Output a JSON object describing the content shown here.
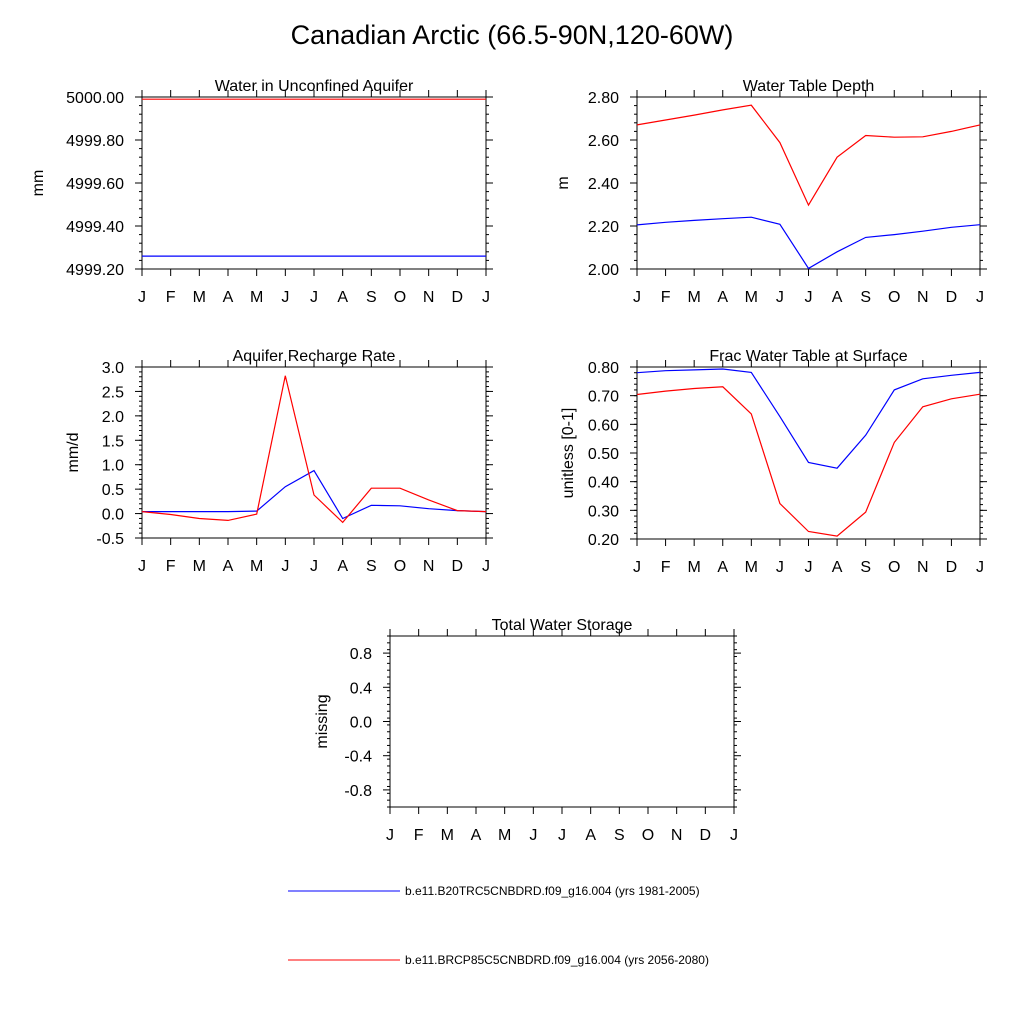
{
  "figure_title": "Canadian Arctic (66.5-90N,120-60W)",
  "chart_data": [
    {
      "type": "line",
      "title": "Water in Unconfined Aquifer",
      "ylabel": "mm",
      "xlabel": "",
      "categories": [
        "J",
        "F",
        "M",
        "A",
        "M",
        "J",
        "J",
        "A",
        "S",
        "O",
        "N",
        "D",
        "J"
      ],
      "ylim": [
        4999.2,
        5000.0
      ],
      "yticks": [
        4999.2,
        4999.4,
        4999.6,
        4999.8,
        5000.0
      ],
      "ytick_labels": [
        "4999.20",
        "4999.40",
        "4999.60",
        "4999.80",
        "5000.00"
      ],
      "series": [
        {
          "name": "b.e11.B20TRC5CNBDRD.f09_g16.004 (yrs 1981-2005)",
          "color": "#0000ff",
          "values": [
            4999.26,
            4999.26,
            4999.26,
            4999.26,
            4999.26,
            4999.26,
            4999.26,
            4999.26,
            4999.26,
            4999.26,
            4999.26,
            4999.26,
            4999.26
          ]
        },
        {
          "name": "b.e11.BRCP85C5CNBDRD.f09_g16.004 (yrs 2056-2080)",
          "color": "#ff0000",
          "values": [
            4999.99,
            4999.99,
            4999.99,
            4999.99,
            4999.99,
            4999.99,
            4999.99,
            4999.99,
            4999.99,
            4999.99,
            4999.99,
            4999.99,
            4999.99
          ]
        }
      ]
    },
    {
      "type": "line",
      "title": "Water Table Depth",
      "ylabel": "m",
      "xlabel": "",
      "categories": [
        "J",
        "F",
        "M",
        "A",
        "M",
        "J",
        "J",
        "A",
        "S",
        "O",
        "N",
        "D",
        "J"
      ],
      "ylim": [
        2.0,
        2.8
      ],
      "yticks": [
        2.0,
        2.2,
        2.4,
        2.6,
        2.8
      ],
      "ytick_labels": [
        "2.00",
        "2.20",
        "2.40",
        "2.60",
        "2.80"
      ],
      "series": [
        {
          "name": "b.e11.B20TRC5CNBDRD.f09_g16.004 (yrs 1981-2005)",
          "color": "#0000ff",
          "values": [
            2.205,
            2.217,
            2.226,
            2.234,
            2.241,
            2.208,
            2.003,
            2.08,
            2.147,
            2.16,
            2.176,
            2.194,
            2.206
          ]
        },
        {
          "name": "b.e11.BRCP85C5CNBDRD.f09_g16.004 (yrs 2056-2080)",
          "color": "#ff0000",
          "values": [
            2.67,
            2.693,
            2.716,
            2.74,
            2.762,
            2.588,
            2.297,
            2.52,
            2.621,
            2.613,
            2.615,
            2.64,
            2.67
          ]
        }
      ]
    },
    {
      "type": "line",
      "title": "Aquifer Recharge Rate",
      "ylabel": "mm/d",
      "xlabel": "",
      "categories": [
        "J",
        "F",
        "M",
        "A",
        "M",
        "J",
        "J",
        "A",
        "S",
        "O",
        "N",
        "D",
        "J"
      ],
      "ylim": [
        -0.5,
        3.0
      ],
      "yticks": [
        -0.5,
        0.0,
        0.5,
        1.0,
        1.5,
        2.0,
        2.5,
        3.0
      ],
      "ytick_labels": [
        "-0.5",
        "0.0",
        "0.5",
        "1.0",
        "1.5",
        "2.0",
        "2.5",
        "3.0"
      ],
      "series": [
        {
          "name": "b.e11.B20TRC5CNBDRD.f09_g16.004 (yrs 1981-2005)",
          "color": "#0000ff",
          "values": [
            0.04,
            0.04,
            0.04,
            0.04,
            0.05,
            0.55,
            0.88,
            -0.1,
            0.17,
            0.16,
            0.1,
            0.06,
            0.04
          ]
        },
        {
          "name": "b.e11.BRCP85C5CNBDRD.f09_g16.004 (yrs 2056-2080)",
          "color": "#ff0000",
          "values": [
            0.04,
            -0.02,
            -0.1,
            -0.14,
            -0.01,
            2.82,
            0.38,
            -0.18,
            0.52,
            0.52,
            0.28,
            0.06,
            0.04
          ]
        }
      ]
    },
    {
      "type": "line",
      "title": "Frac Water Table at Surface",
      "ylabel": "unitless [0-1]",
      "xlabel": "",
      "categories": [
        "J",
        "F",
        "M",
        "A",
        "M",
        "J",
        "J",
        "A",
        "S",
        "O",
        "N",
        "D",
        "J"
      ],
      "ylim": [
        0.2,
        0.8
      ],
      "yticks": [
        0.2,
        0.3,
        0.4,
        0.5,
        0.6,
        0.7,
        0.8
      ],
      "ytick_labels": [
        "0.20",
        "0.30",
        "0.40",
        "0.50",
        "0.60",
        "0.70",
        "0.80"
      ],
      "series": [
        {
          "name": "b.e11.B20TRC5CNBDRD.f09_g16.004 (yrs 1981-2005)",
          "color": "#0000ff",
          "values": [
            0.78,
            0.787,
            0.79,
            0.793,
            0.781,
            0.627,
            0.467,
            0.447,
            0.562,
            0.72,
            0.759,
            0.771,
            0.781
          ]
        },
        {
          "name": "b.e11.BRCP85C5CNBDRD.f09_g16.004 (yrs 2056-2080)",
          "color": "#ff0000",
          "values": [
            0.704,
            0.716,
            0.725,
            0.731,
            0.636,
            0.324,
            0.226,
            0.21,
            0.294,
            0.537,
            0.661,
            0.689,
            0.705
          ]
        }
      ]
    },
    {
      "type": "line",
      "title": "Total Water Storage",
      "ylabel": "missing",
      "xlabel": "",
      "categories": [
        "J",
        "F",
        "M",
        "A",
        "M",
        "J",
        "J",
        "A",
        "S",
        "O",
        "N",
        "D",
        "J"
      ],
      "ylim": [
        -1.0,
        1.0
      ],
      "yticks": [
        -0.8,
        -0.4,
        0.0,
        0.4,
        0.8
      ],
      "ytick_labels": [
        "-0.8",
        "-0.4",
        "0.0",
        "0.4",
        "0.8"
      ],
      "series": []
    }
  ],
  "legend": [
    {
      "label": "b.e11.B20TRC5CNBDRD.f09_g16.004 (yrs 1981-2005)",
      "color": "#0000ff"
    },
    {
      "label": "b.e11.BRCP85C5CNBDRD.f09_g16.004 (yrs 2056-2080)",
      "color": "#ff0000"
    }
  ]
}
